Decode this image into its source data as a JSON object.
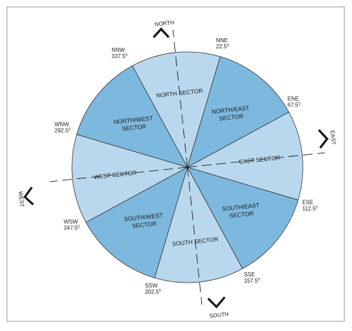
{
  "colors": {
    "sector_light": "#b9d8ee",
    "sector_dark": "#7db8de",
    "outline": "#333333",
    "frame": "#9a9a9a"
  },
  "sectors": [
    {
      "id": "north",
      "label_lines": [
        "NORTH SECTOR"
      ],
      "shade": "light"
    },
    {
      "id": "northeast",
      "label_lines": [
        "NORTH/EAST",
        "SECTOR"
      ],
      "shade": "dark"
    },
    {
      "id": "east",
      "label_lines": [
        "EAST SECTOR"
      ],
      "shade": "light"
    },
    {
      "id": "southeast",
      "label_lines": [
        "SOUTH/EAST",
        "SECTOR"
      ],
      "shade": "dark"
    },
    {
      "id": "south",
      "label_lines": [
        "SOUTH SECTOR"
      ],
      "shade": "light"
    },
    {
      "id": "southwest",
      "label_lines": [
        "SOUTH/WEST",
        "SECTOR"
      ],
      "shade": "dark"
    },
    {
      "id": "west",
      "label_lines": [
        "WEST SECTOR"
      ],
      "shade": "light"
    },
    {
      "id": "northwest",
      "label_lines": [
        "NORTH/WEST",
        "SECTOR"
      ],
      "shade": "dark"
    }
  ],
  "boundaries": [
    {
      "name": "NNE",
      "degrees": "22.5"
    },
    {
      "name": "ENE",
      "degrees": "67.5"
    },
    {
      "name": "ESE",
      "degrees": "112.5"
    },
    {
      "name": "SSE",
      "degrees": "157.5"
    },
    {
      "name": "SSW",
      "degrees": "202.5"
    },
    {
      "name": "WSW",
      "degrees": "247.5"
    },
    {
      "name": "WNW",
      "degrees": "292.5"
    },
    {
      "name": "NNW",
      "degrees": "337.5"
    }
  ],
  "degree_symbol": "0",
  "directions": {
    "north": "NORTH",
    "east": "EAST",
    "south": "SOUTH",
    "west": "WEST"
  }
}
